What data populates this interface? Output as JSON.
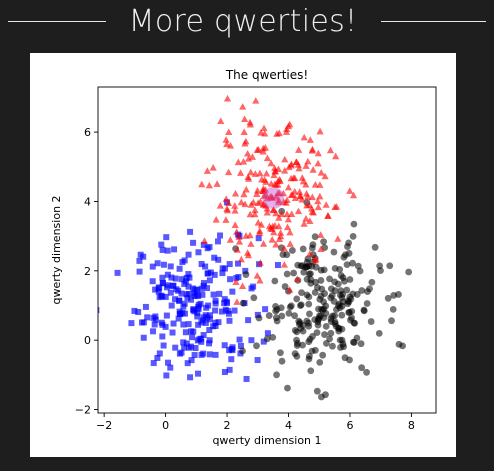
{
  "slide": {
    "title": "More qwerties!"
  },
  "chart_data": {
    "type": "scatter",
    "title": "The qwerties!",
    "xlabel": "qwerty dimension 1",
    "ylabel": "qwerty dimension 2",
    "xlim": [
      -2.2,
      8.8
    ],
    "ylim": [
      -2.1,
      7.3
    ],
    "xticks": [
      -2,
      0,
      2,
      4,
      6,
      8
    ],
    "yticks": [
      -2,
      0,
      2,
      4,
      6
    ],
    "grid": false,
    "legend": "none",
    "series": [
      {
        "marker": "square",
        "color": "#0000ff",
        "opacity": 0.65,
        "center": [
          1.0,
          1.0
        ],
        "spread": [
          1.0,
          1.0
        ],
        "count": 230
      },
      {
        "marker": "triangle",
        "color": "#ff0000",
        "opacity": 0.6,
        "center": [
          3.5,
          4.1
        ],
        "spread": [
          1.0,
          1.0
        ],
        "count": 230
      },
      {
        "marker": "circle",
        "color": "#000000",
        "opacity": 0.55,
        "center": [
          5.0,
          1.0
        ],
        "spread": [
          1.0,
          1.0
        ],
        "count": 230
      }
    ],
    "highlight": {
      "x": 3.5,
      "y": 4.1,
      "color": "#c050d0"
    }
  }
}
